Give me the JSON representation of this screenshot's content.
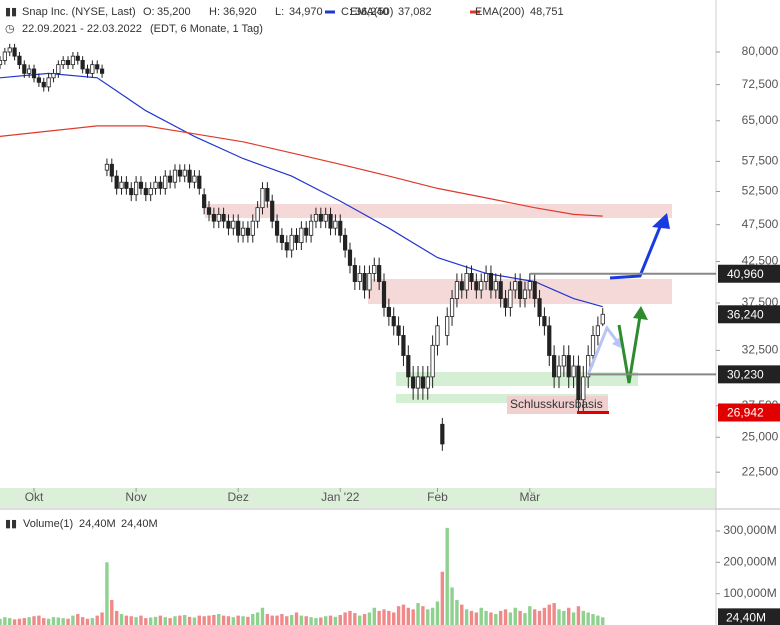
{
  "chart_data": [
    {
      "type": "candlestick",
      "title": "Snap Inc. (NYSE, Last)",
      "quote": [
        {
          "name": "O:",
          "value": 35.2,
          "label": "35,200"
        },
        {
          "name": "H:",
          "value": 36.92,
          "label": "36,920"
        },
        {
          "name": "L:",
          "value": 34.97,
          "label": "34,970"
        },
        {
          "name": "C:",
          "value": 36.24,
          "label": "36,240"
        }
      ],
      "subtitle": "22.09.2021 - 22.03.2022",
      "note": "(EDT, 6 Monate, 1 Tag)",
      "open": [
        77,
        78,
        80,
        81,
        79,
        77,
        75,
        76,
        74,
        73,
        72,
        74,
        75,
        77,
        78,
        77,
        79,
        78,
        76,
        75,
        77,
        76,
        56,
        57,
        55,
        53,
        54,
        53,
        52,
        54,
        53,
        52,
        53,
        54,
        53,
        55,
        54,
        56,
        55,
        56,
        54,
        55,
        52,
        50,
        49,
        48,
        49,
        48,
        47,
        48,
        46,
        47,
        46,
        48,
        50,
        53,
        51,
        48,
        46,
        45,
        44,
        46,
        45,
        47,
        46,
        48,
        49,
        48,
        49,
        47,
        48,
        46,
        44,
        42,
        40,
        41,
        39,
        41,
        42,
        40,
        37,
        36,
        35,
        34,
        32,
        30,
        29,
        30,
        29,
        30,
        33,
        26,
        34,
        36,
        38,
        40,
        39,
        41,
        40,
        39,
        40,
        41,
        39,
        40,
        38,
        37,
        39,
        40,
        38,
        39,
        40,
        38,
        36,
        35,
        32,
        30,
        31,
        32,
        30,
        31,
        28,
        30,
        32,
        34,
        35.2
      ],
      "high": [
        79,
        81,
        82,
        82,
        80,
        78,
        77,
        77,
        75,
        74,
        75,
        76,
        78,
        79,
        79,
        80,
        80,
        79,
        77,
        78,
        78,
        77,
        58,
        58,
        56,
        55,
        55,
        54,
        55,
        55,
        54,
        54,
        55,
        55,
        56,
        56,
        57,
        57,
        57,
        57,
        56,
        56,
        53,
        51,
        50,
        50,
        50,
        49,
        49,
        49,
        48,
        48,
        49,
        51,
        54,
        54,
        52,
        49,
        47,
        46,
        47,
        47,
        48,
        48,
        49,
        50,
        50,
        50,
        50,
        49,
        49,
        47,
        45,
        43,
        42,
        42,
        42,
        43,
        43,
        41,
        38,
        37,
        36,
        35,
        33,
        31,
        31,
        31,
        31,
        34,
        36,
        26.5,
        37,
        39,
        41,
        41,
        42,
        42,
        41,
        41,
        42,
        42,
        41,
        41,
        39,
        40,
        41,
        41,
        40,
        41,
        41,
        39,
        37,
        36,
        33,
        32,
        33,
        33,
        32,
        32,
        31,
        33,
        35,
        36,
        36.92
      ],
      "low": [
        76,
        77,
        79,
        78,
        76,
        74,
        74,
        73,
        72,
        71,
        71,
        73,
        74,
        76,
        76,
        76,
        77,
        75,
        74,
        74,
        75,
        74,
        55,
        54,
        52,
        52,
        52,
        51,
        51,
        52,
        51,
        51,
        52,
        52,
        52,
        53,
        53,
        54,
        54,
        53,
        53,
        52,
        49,
        48,
        47,
        47,
        47,
        46,
        46,
        45,
        45,
        45,
        45,
        47,
        49,
        50,
        47,
        45,
        44,
        43,
        43,
        44,
        44,
        45,
        45,
        47,
        47,
        47,
        46,
        46,
        45,
        43,
        41,
        39,
        39,
        38,
        38,
        40,
        39,
        36,
        35,
        34,
        33,
        31,
        29,
        28,
        28,
        28,
        28,
        29,
        32,
        24,
        33,
        35,
        37,
        38,
        38,
        39,
        38,
        38,
        39,
        38,
        38,
        37,
        36,
        36,
        38,
        37,
        37,
        38,
        37,
        35,
        34,
        31,
        29,
        29,
        30,
        29,
        29,
        27,
        27,
        29,
        31,
        33,
        34.97
      ],
      "close": [
        78,
        80,
        81,
        79,
        77,
        75,
        76,
        74,
        73,
        72,
        74,
        75,
        77,
        78,
        77,
        79,
        78,
        76,
        75,
        77,
        76,
        75,
        57,
        55,
        53,
        54,
        53,
        52,
        54,
        53,
        52,
        53,
        54,
        53,
        55,
        54,
        56,
        55,
        56,
        54,
        55,
        53,
        50,
        49,
        48,
        49,
        48,
        47,
        48,
        46,
        47,
        46,
        48,
        50,
        53,
        51,
        48,
        46,
        45,
        44,
        46,
        45,
        47,
        46,
        48,
        49,
        48,
        49,
        47,
        48,
        46,
        44,
        42,
        40,
        41,
        39,
        41,
        42,
        40,
        37,
        36,
        35,
        34,
        32,
        30,
        29,
        30,
        29,
        30,
        33,
        35,
        24.5,
        36,
        38,
        40,
        39,
        41,
        40,
        39,
        40,
        41,
        39,
        40,
        38,
        37,
        39,
        40,
        38,
        39,
        40,
        38,
        36,
        35,
        32,
        30,
        31,
        32,
        30,
        31,
        28,
        30,
        32,
        34,
        35,
        36.24
      ],
      "up_color": "#ffffff",
      "down_color": "#222222",
      "series": [
        {
          "name": "EMA(50)",
          "color": "#2236d0",
          "legend_value": {
            "value": 37.082,
            "label": "37,082"
          },
          "x": [
            0,
            10,
            20,
            30,
            40,
            50,
            60,
            70,
            80,
            90,
            100,
            110,
            118,
            124
          ],
          "values": [
            74,
            75,
            74,
            67,
            62,
            58,
            55,
            51,
            47,
            43,
            41,
            40,
            38,
            37.082
          ]
        },
        {
          "name": "EMA(200)",
          "color": "#e0392b",
          "legend_value": {
            "value": 48.751,
            "label": "48,751"
          },
          "x": [
            0,
            10,
            20,
            30,
            40,
            50,
            60,
            70,
            80,
            90,
            100,
            110,
            118,
            124
          ],
          "values": [
            62,
            63,
            64,
            64,
            62.5,
            61,
            59,
            57,
            55,
            53,
            51.5,
            50,
            49,
            48.751
          ]
        }
      ],
      "log_scale": true,
      "ylim": [
        21.45,
        93.6
      ],
      "yticks": [
        {
          "value": 22.5,
          "label": "22,500"
        },
        {
          "value": 25,
          "label": "25,000"
        },
        {
          "value": 27.5,
          "label": "27,500"
        },
        {
          "value": 32.5,
          "label": "32,500"
        },
        {
          "value": 37.5,
          "label": "37,500"
        },
        {
          "value": 42.5,
          "label": "42,500"
        },
        {
          "value": 47.5,
          "label": "47,500"
        },
        {
          "value": 52.5,
          "label": "52,500"
        },
        {
          "value": 57.5,
          "label": "57,500"
        },
        {
          "value": 65,
          "label": "65,000"
        },
        {
          "value": 72.5,
          "label": "72,500"
        },
        {
          "value": 80,
          "label": "80,000"
        }
      ],
      "xlim": [
        0,
        147.3
      ],
      "xticks": [
        {
          "value": 7,
          "label": "Okt"
        },
        {
          "value": 28,
          "label": "Nov"
        },
        {
          "value": 49,
          "label": "Dez"
        },
        {
          "value": 70,
          "label": "Jan '22"
        },
        {
          "value": 90,
          "label": "Feb"
        },
        {
          "value": 109,
          "label": "Mär"
        }
      ],
      "markers": [
        {
          "value": 40.96,
          "label": "40,960",
          "color": "#222222"
        },
        {
          "value": 36.24,
          "label": "36,240",
          "color": "#222222"
        },
        {
          "value": 30.23,
          "label": "30,230",
          "color": "#222222"
        },
        {
          "value": 26.942,
          "label": "26,942",
          "color": "#e00000"
        }
      ],
      "annotation": "Schlusskursbasis"
    },
    {
      "type": "bar",
      "title": "Volume(1)",
      "legend_values": [
        {
          "value": 24.4,
          "label": "24,40M"
        },
        {
          "value": 24.4,
          "label": "24,40M"
        }
      ],
      "values": [
        20,
        25,
        22,
        18,
        20,
        22,
        25,
        28,
        30,
        22,
        20,
        25,
        24,
        22,
        20,
        30,
        35,
        25,
        20,
        22,
        30,
        40,
        200,
        80,
        45,
        35,
        30,
        28,
        25,
        30,
        22,
        24,
        26,
        30,
        25,
        22,
        28,
        30,
        32,
        26,
        24,
        30,
        28,
        30,
        32,
        35,
        30,
        28,
        25,
        30,
        28,
        26,
        35,
        40,
        55,
        35,
        30,
        30,
        35,
        28,
        32,
        40,
        30,
        28,
        25,
        22,
        24,
        28,
        30,
        26,
        32,
        40,
        45,
        38,
        30,
        35,
        40,
        55,
        45,
        50,
        45,
        40,
        60,
        65,
        55,
        50,
        70,
        60,
        50,
        55,
        75,
        170,
        310,
        120,
        80,
        65,
        50,
        45,
        40,
        55,
        45,
        40,
        35,
        45,
        50,
        40,
        55,
        45,
        38,
        60,
        50,
        45,
        55,
        65,
        70,
        50,
        45,
        55,
        40,
        60,
        45,
        40,
        35,
        30,
        24.4
      ],
      "up_color": "#8fd18f",
      "down_color": "#f08a8a",
      "marker": {
        "value": 24.4,
        "label": "24,40M"
      },
      "ylim": [
        0,
        367
      ],
      "yticks": [
        {
          "value": 100,
          "label": "100,000M"
        },
        {
          "value": 200,
          "label": "200,000M"
        },
        {
          "value": 300,
          "label": "300,000M"
        }
      ],
      "xlim": [
        0,
        147.3
      ]
    }
  ]
}
